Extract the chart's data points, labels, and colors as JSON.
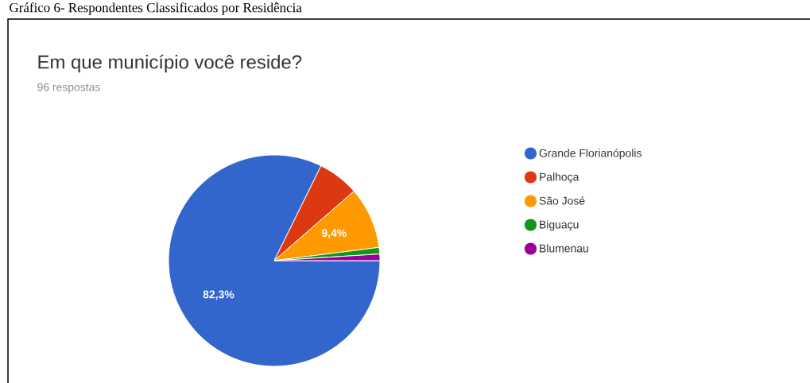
{
  "chart_data": {
    "type": "pie",
    "title": "Em que município você reside?",
    "subtitle": "96 respostas",
    "annotations": [
      "Gráfico 6- Respondentes Classificados por Residência"
    ],
    "categories": [
      "Grande Florianópolis",
      "Palhoça",
      "São José",
      "Biguaçu",
      "Blumenau"
    ],
    "values": [
      82.3,
      6.3,
      9.4,
      1.0,
      1.0
    ],
    "value_labels": [
      "82,3%",
      null,
      "9,4%",
      null,
      null
    ],
    "colors": [
      "#3366cc",
      "#dc3912",
      "#ff9900",
      "#109618",
      "#990099"
    ],
    "legend": "right"
  }
}
